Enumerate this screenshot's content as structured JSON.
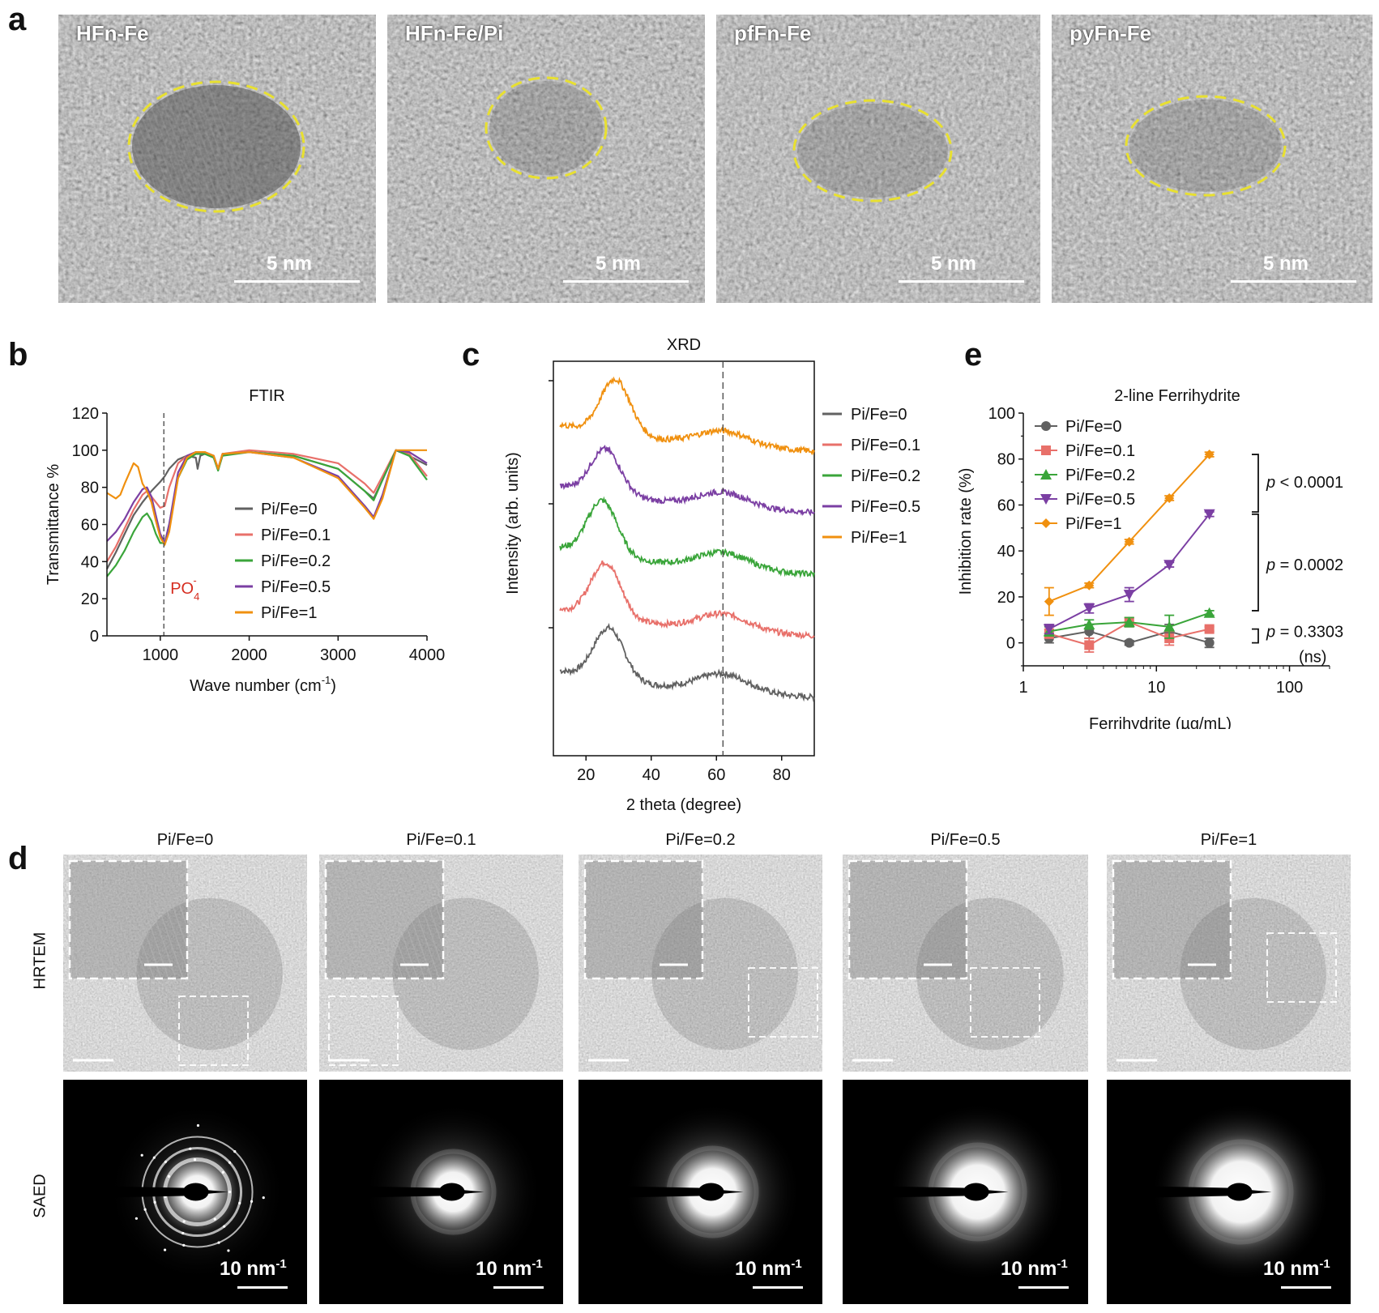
{
  "panel_letters": {
    "a": "a",
    "b": "b",
    "c": "c",
    "d": "d",
    "e": "e"
  },
  "panel_a": {
    "images": [
      {
        "label": "HFn-Fe",
        "scale": "5 nm"
      },
      {
        "label": "HFn-Fe/Pi",
        "scale": "5 nm"
      },
      {
        "label": "pfFn-Fe",
        "scale": "5 nm"
      },
      {
        "label": "pyFn-Fe",
        "scale": "5 nm"
      }
    ]
  },
  "panel_d": {
    "columns": [
      "Pi/Fe=0",
      "Pi/Fe=0.1",
      "Pi/Fe=0.2",
      "Pi/Fe=0.5",
      "Pi/Fe=1"
    ],
    "rows": {
      "hrtem": "HRTEM",
      "saed": "SAED"
    },
    "saed_scale": "10 nm",
    "saed_scale_sup": "-1"
  },
  "colors": {
    "s0": "#616161",
    "s01": "#e8706a",
    "s02": "#3aa53a",
    "s05": "#7b3fa3",
    "s1": "#f0900f",
    "dashed_ellipse": "#e8e030"
  },
  "chart_data": [
    {
      "panel": "b",
      "type": "line",
      "title": "FTIR",
      "xlabel": "Wave number (cm",
      "xlabel_sup": "-1",
      "xlabel_end": ")",
      "ylabel": "Transmittance %",
      "xlim": [
        400,
        4000
      ],
      "ylim": [
        0,
        120
      ],
      "xticks": [
        1000,
        2000,
        3000,
        4000
      ],
      "yticks": [
        0,
        20,
        40,
        60,
        80,
        100,
        120
      ],
      "annotation": {
        "text": "PO",
        "sub": "4",
        "sup": "-",
        "x": 1040
      },
      "legend_position": "center-right",
      "series": [
        {
          "name": "Pi/Fe=0",
          "color": "#616161",
          "x": [
            400,
            500,
            600,
            700,
            800,
            900,
            1000,
            1050,
            1100,
            1200,
            1300,
            1400,
            1420,
            1450,
            1500,
            1600,
            1650,
            1700,
            2000,
            2500,
            3000,
            3300,
            3400,
            3500,
            3650,
            3800,
            4000
          ],
          "y": [
            36,
            45,
            55,
            65,
            72,
            78,
            83,
            86,
            90,
            95,
            97,
            96,
            90,
            97,
            98,
            97,
            90,
            98,
            99,
            97,
            90,
            78,
            74,
            84,
            100,
            97,
            92
          ]
        },
        {
          "name": "Pi/Fe=0.1",
          "color": "#e8706a",
          "x": [
            400,
            500,
            600,
            700,
            800,
            850,
            900,
            1000,
            1050,
            1100,
            1200,
            1300,
            1400,
            1500,
            1600,
            1650,
            1700,
            2000,
            2500,
            3000,
            3300,
            3400,
            3500,
            3650,
            3800,
            4000
          ],
          "y": [
            40,
            48,
            58,
            68,
            76,
            78,
            75,
            69,
            70,
            80,
            93,
            97,
            99,
            99,
            97,
            90,
            98,
            100,
            98,
            93,
            82,
            77,
            86,
            100,
            98,
            86
          ]
        },
        {
          "name": "Pi/Fe=0.2",
          "color": "#3aa53a",
          "x": [
            400,
            500,
            600,
            700,
            800,
            850,
            900,
            950,
            1000,
            1050,
            1100,
            1200,
            1300,
            1400,
            1500,
            1600,
            1650,
            1700,
            2000,
            2500,
            3000,
            3300,
            3400,
            3500,
            3650,
            3800,
            4000
          ],
          "y": [
            32,
            38,
            46,
            56,
            64,
            66,
            62,
            55,
            50,
            50,
            60,
            85,
            95,
            98,
            98,
            96,
            89,
            97,
            99,
            97,
            90,
            78,
            73,
            84,
            100,
            97,
            84
          ]
        },
        {
          "name": "Pi/Fe=0.5",
          "color": "#7b3fa3",
          "x": [
            400,
            500,
            600,
            700,
            800,
            850,
            900,
            950,
            1000,
            1050,
            1100,
            1200,
            1300,
            1400,
            1500,
            1600,
            1650,
            1700,
            2000,
            2500,
            3000,
            3300,
            3400,
            3500,
            3650,
            3800,
            4000
          ],
          "y": [
            51,
            56,
            63,
            72,
            79,
            80,
            75,
            65,
            55,
            50,
            60,
            88,
            97,
            99,
            99,
            97,
            90,
            98,
            99,
            96,
            86,
            70,
            64,
            76,
            100,
            99,
            93
          ]
        },
        {
          "name": "Pi/Fe=1",
          "color": "#f0900f",
          "x": [
            400,
            500,
            550,
            600,
            700,
            750,
            800,
            850,
            900,
            950,
            1000,
            1050,
            1100,
            1200,
            1300,
            1400,
            1500,
            1600,
            1650,
            1700,
            2000,
            2500,
            3000,
            3300,
            3400,
            3500,
            3650,
            3800,
            4000
          ],
          "y": [
            77,
            74,
            76,
            82,
            93,
            91,
            82,
            78,
            72,
            62,
            53,
            49,
            56,
            85,
            96,
            99,
            99,
            97,
            90,
            98,
            99,
            96,
            85,
            69,
            63,
            74,
            100,
            100,
            100
          ]
        }
      ]
    },
    {
      "panel": "c",
      "type": "line",
      "title": "XRD",
      "xlabel": "2 theta (degree)",
      "ylabel": "Intensity (arb. units)",
      "xlim": [
        10,
        90
      ],
      "xticks": [
        20,
        40,
        60,
        80
      ],
      "dashed_line_x": 62,
      "legend_position": "right",
      "series": [
        {
          "name": "Pi/Fe=0",
          "color": "#616161",
          "offset": 0,
          "peak1": [
            27,
            1.6
          ],
          "peak2": [
            62,
            0.55
          ]
        },
        {
          "name": "Pi/Fe=0.1",
          "color": "#e8706a",
          "offset": 1,
          "peak1": [
            26,
            1.7
          ],
          "peak2": [
            62,
            0.5
          ]
        },
        {
          "name": "Pi/Fe=0.2",
          "color": "#3aa53a",
          "offset": 2,
          "peak1": [
            25,
            1.7
          ],
          "peak2": [
            62,
            0.5
          ]
        },
        {
          "name": "Pi/Fe=0.5",
          "color": "#7b3fa3",
          "offset": 3,
          "peak1": [
            26,
            1.4
          ],
          "peak2": [
            62,
            0.45
          ]
        },
        {
          "name": "Pi/Fe=1",
          "color": "#f0900f",
          "offset": 4,
          "peak1": [
            29,
            1.7
          ],
          "peak2": [
            62,
            0.45
          ]
        }
      ]
    },
    {
      "panel": "e",
      "type": "line",
      "title": "2-line Ferrihydrite",
      "xlabel": "Ferrihydrite (µg/mL)",
      "ylabel": "Inhibition rate (%)",
      "xscale": "log",
      "xlim": [
        1,
        200
      ],
      "ylim": [
        -10,
        100
      ],
      "xticks": [
        1,
        10,
        100
      ],
      "yticks": [
        0,
        20,
        40,
        60,
        80,
        100
      ],
      "legend_position": "top-left",
      "x": [
        1.5625,
        3.125,
        6.25,
        12.5,
        25
      ],
      "series": [
        {
          "name": "Pi/Fe=0",
          "color": "#616161",
          "marker": "circle",
          "values": [
            2,
            5,
            0,
            5,
            0
          ],
          "err": [
            2,
            3,
            1,
            3,
            2
          ]
        },
        {
          "name": "Pi/Fe=0.1",
          "color": "#e8706a",
          "marker": "square",
          "values": [
            4,
            -1,
            9,
            2,
            6
          ],
          "err": [
            2,
            3,
            2,
            3,
            1
          ]
        },
        {
          "name": "Pi/Fe=0.2",
          "color": "#3aa53a",
          "marker": "triangle-up",
          "values": [
            5,
            8,
            9,
            7,
            13
          ],
          "err": [
            2,
            2,
            2,
            5,
            1
          ]
        },
        {
          "name": "Pi/Fe=0.5",
          "color": "#7b3fa3",
          "marker": "triangle-down",
          "values": [
            6,
            15,
            21,
            34,
            56
          ],
          "err": [
            2,
            2,
            3,
            1,
            1
          ]
        },
        {
          "name": "Pi/Fe=1",
          "color": "#f0900f",
          "marker": "diamond",
          "values": [
            18,
            25,
            44,
            63,
            82
          ],
          "err": [
            6,
            1,
            1,
            1,
            1
          ]
        }
      ],
      "significance": [
        {
          "label_p": "p",
          "label_rest": " < 0.0001"
        },
        {
          "label_p": "p",
          "label_rest": " = 0.0002"
        },
        {
          "label_p": "p",
          "label_rest": " = 0.3303",
          "extra": "(ns)"
        }
      ]
    }
  ]
}
